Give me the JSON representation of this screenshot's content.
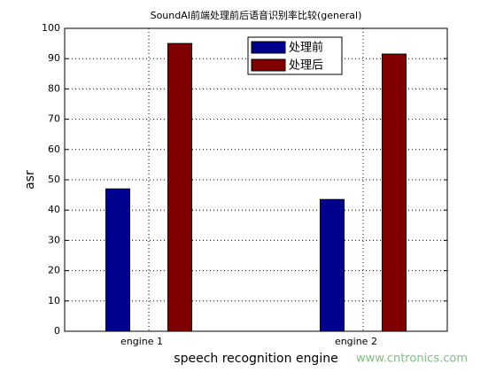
{
  "chart_data": {
    "type": "bar",
    "title": "SoundAI前端处理前后语音识别率比较(general)",
    "xlabel": "speech recognition engine",
    "ylabel": "asr",
    "categories": [
      "engine 1",
      "engine 2"
    ],
    "series": [
      {
        "name": "处理前",
        "color": "#00008f",
        "values": [
          47,
          43.5
        ]
      },
      {
        "name": "处理后",
        "color": "#800000",
        "values": [
          95,
          91.5
        ]
      }
    ],
    "ylim": [
      0,
      100
    ],
    "yticks": [
      0,
      10,
      20,
      30,
      40,
      50,
      60,
      70,
      80,
      90,
      100
    ],
    "grid": true,
    "legend": "top",
    "watermark": "www.cntronics.com"
  }
}
